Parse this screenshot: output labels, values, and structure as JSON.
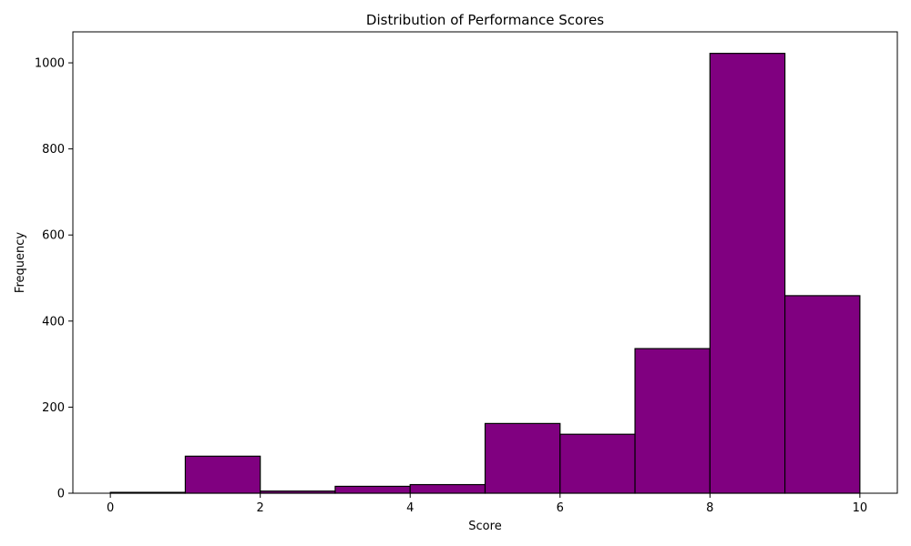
{
  "chart_data": {
    "type": "bar",
    "title": "Distribution of Performance Scores",
    "xlabel": "Score",
    "ylabel": "Frequency",
    "xlim": [
      -0.5,
      10.5
    ],
    "ylim": [
      0,
      1072
    ],
    "grid": false,
    "bar_color": "#800080",
    "edge_color": "#000000",
    "bins": [
      {
        "start": 0,
        "end": 1,
        "value": 2
      },
      {
        "start": 1,
        "end": 2,
        "value": 86
      },
      {
        "start": 2,
        "end": 3,
        "value": 5
      },
      {
        "start": 3,
        "end": 4,
        "value": 16
      },
      {
        "start": 4,
        "end": 5,
        "value": 20
      },
      {
        "start": 5,
        "end": 6,
        "value": 162
      },
      {
        "start": 6,
        "end": 7,
        "value": 137
      },
      {
        "start": 7,
        "end": 8,
        "value": 336
      },
      {
        "start": 8,
        "end": 9,
        "value": 1022
      },
      {
        "start": 9,
        "end": 10,
        "value": 459
      }
    ],
    "x_ticks": [
      0,
      2,
      4,
      6,
      8,
      10
    ],
    "y_ticks": [
      0,
      200,
      400,
      600,
      800,
      1000
    ]
  }
}
